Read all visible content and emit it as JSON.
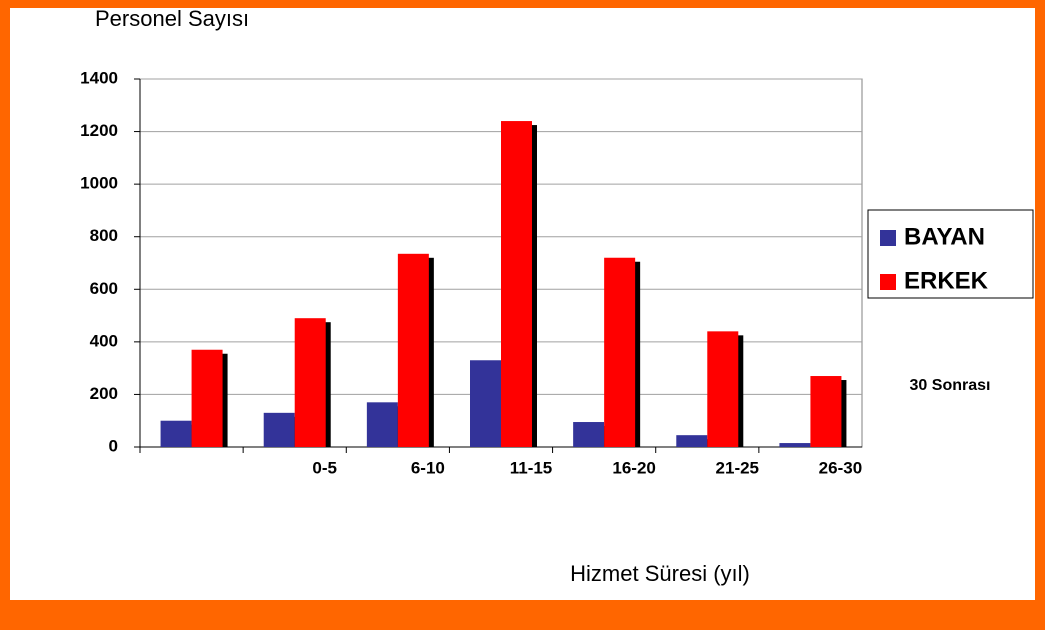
{
  "chart_data": {
    "type": "bar",
    "title": "Personel Sayısı",
    "x_label": "Hizmet Süresi (yıl)",
    "annotation": "30 Sonrası",
    "categories": [
      null,
      "0-5",
      "6-10",
      "11-15",
      "16-20",
      "21-25",
      "26-30"
    ],
    "series": [
      {
        "name": "BAYAN",
        "color": "#333399",
        "values": [
          100,
          130,
          170,
          330,
          95,
          45,
          15
        ]
      },
      {
        "name": "ERKEK",
        "color": "#ff0000",
        "values": [
          370,
          490,
          735,
          1240,
          720,
          440,
          270
        ]
      }
    ],
    "ylim": [
      0,
      1400
    ],
    "yticks": [
      0,
      200,
      400,
      600,
      800,
      1000,
      1200,
      1400
    ],
    "grid": true,
    "legend": "right"
  }
}
